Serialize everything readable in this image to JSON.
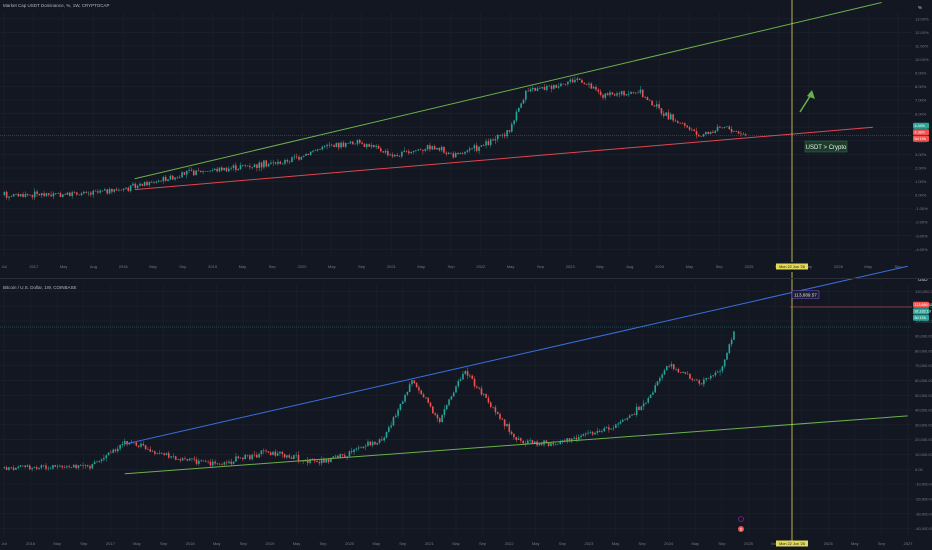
{
  "colors": {
    "background": "#131722",
    "grid": "#1e222d",
    "up": "#26a69a",
    "down": "#ef5350",
    "green_trend": "#6ab04c",
    "red_trend": "#e0454f",
    "blue_trend": "#3a6fe0",
    "crosshair": "#e3d85a",
    "axis_text": "#787b86"
  },
  "chart_data": [
    {
      "type": "line",
      "title": "Market Cap USDT Dominance, %, 1W, CRYPTOCAP",
      "y_unit": "%",
      "y_ticks": [
        "13.00%",
        "12.00%",
        "11.00%",
        "10.00%",
        "9.00%",
        "8.00%",
        "7.00%",
        "6.00%",
        "5.00%",
        "4.00%",
        "3.00%",
        "2.00%",
        "1.00%",
        "0.00%",
        "-1.00%",
        "-2.00%",
        "-3.00%",
        "-4.00%"
      ],
      "ylim": [
        -4.5,
        13.5
      ],
      "top_axis_label": "%",
      "x_ticks": [
        "Jul",
        "2017",
        "May",
        "Aug",
        "2018",
        "May",
        "Sep",
        "2019",
        "May",
        "Sep",
        "2020",
        "May",
        "Sep",
        "2021",
        "May",
        "Sep",
        "2022",
        "May",
        "Sep",
        "2023",
        "May",
        "Aug",
        "2024",
        "May",
        "Sep",
        "2025",
        "May",
        "Sep",
        "2026",
        "May",
        "Sep"
      ],
      "series_points": [
        [
          "2016.50",
          0.0
        ],
        [
          "2017.50",
          0.1
        ],
        [
          "2018.00",
          0.6
        ],
        [
          "2018.60",
          1.6
        ],
        [
          "2019.20",
          2.1
        ],
        [
          "2019.70",
          2.4
        ],
        [
          "2020.20",
          3.6
        ],
        [
          "2020.60",
          3.9
        ],
        [
          "2021.00",
          2.9
        ],
        [
          "2021.40",
          3.6
        ],
        [
          "2021.70",
          2.9
        ],
        [
          "2022.00",
          3.6
        ],
        [
          "2022.30",
          4.6
        ],
        [
          "2022.50",
          7.6
        ],
        [
          "2022.80",
          8.0
        ],
        [
          "2023.10",
          8.6
        ],
        [
          "2023.40",
          7.3
        ],
        [
          "2023.80",
          7.6
        ],
        [
          "2024.10",
          6.0
        ],
        [
          "2024.50",
          4.4
        ],
        [
          "2024.80",
          5.0
        ],
        [
          "2025.05",
          4.4
        ]
      ],
      "trend_lines": [
        {
          "color": "green",
          "from": [
            "2018.0",
            1.2
          ],
          "to": [
            "2026.6",
            14.2
          ]
        },
        {
          "color": "red",
          "from": [
            "2018.0",
            0.4
          ],
          "to": [
            "2026.5",
            5.0
          ]
        }
      ],
      "price_labels": [
        {
          "text": "4.44%",
          "color": "#26a69a"
        },
        {
          "text": "4.38%",
          "color": "#ef5350"
        },
        {
          "text": "5d 19h",
          "color": "#ef5350"
        }
      ],
      "annotation": "USDT > Crypto",
      "crosshair_date": "Mon 22 Jun '26"
    },
    {
      "type": "line",
      "title": "Bitcoin / U.S. Dollar, 1W, COINBASE",
      "y_unit": "USD",
      "y_ticks": [
        "120,000.00",
        "110,000.00",
        "100,000.00",
        "90,000.00",
        "80,000.00",
        "70,000.00",
        "60,000.00",
        "50,000.00",
        "40,000.00",
        "30,000.00",
        "20,000.00",
        "10,000.00",
        "0.00",
        "-10,000.00",
        "-20,000.00",
        "-30,000.00",
        "-40,000.00"
      ],
      "ylim": [
        -45000,
        125000
      ],
      "top_axis_label": "USD",
      "x_ticks": [
        "Jul",
        "2016",
        "May",
        "Sep",
        "2017",
        "May",
        "Sep",
        "2018",
        "May",
        "Sep",
        "2019",
        "May",
        "Sep",
        "2020",
        "May",
        "Sep",
        "2021",
        "May",
        "Sep",
        "2022",
        "May",
        "Sep",
        "2023",
        "May",
        "Sep",
        "2024",
        "May",
        "Sep",
        "2025",
        "May",
        "Sep",
        "2026",
        "May",
        "Sep",
        "2027"
      ],
      "series_points": [
        [
          "2016.50",
          600
        ],
        [
          "2017.50",
          2500
        ],
        [
          "2017.95",
          19000
        ],
        [
          "2018.50",
          7000
        ],
        [
          "2019.00",
          3500
        ],
        [
          "2019.50",
          11000
        ],
        [
          "2020.20",
          5000
        ],
        [
          "2020.90",
          20000
        ],
        [
          "2021.25",
          60000
        ],
        [
          "2021.55",
          32000
        ],
        [
          "2021.85",
          67000
        ],
        [
          "2022.45",
          20000
        ],
        [
          "2022.90",
          16500
        ],
        [
          "2023.60",
          29000
        ],
        [
          "2023.95",
          44000
        ],
        [
          "2024.20",
          70000
        ],
        [
          "2024.60",
          58000
        ],
        [
          "2024.85",
          70000
        ],
        [
          "2025.00",
          96000
        ]
      ],
      "trend_lines": [
        {
          "color": "blue",
          "from": [
            "2017.9",
            17000
          ],
          "to": [
            "2027.0",
            137000
          ]
        },
        {
          "color": "green",
          "from": [
            "2017.9",
            -3000
          ],
          "to": [
            "2027.0",
            36000
          ]
        }
      ],
      "price_labels": [
        {
          "text": "113,689.57",
          "color": "#ef5350"
        },
        {
          "text": "92,182.10",
          "color": "#26a69a"
        },
        {
          "text": "5d 19h",
          "color": "#26a69a"
        }
      ],
      "target_label": "113,689.57",
      "crosshair_date": "Mon 22 Jun '26",
      "event_marker": "D"
    }
  ]
}
